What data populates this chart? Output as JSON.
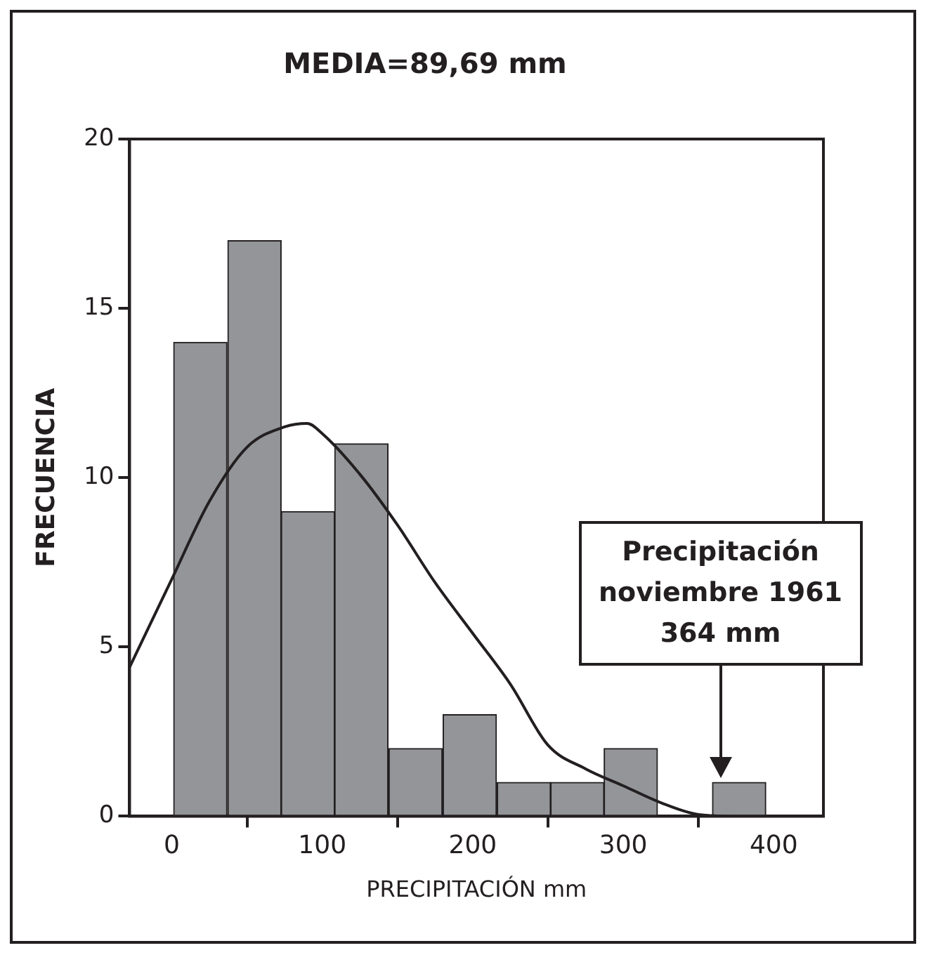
{
  "chart_data": {
    "type": "histogram",
    "title": "MEDIA=89,69 mm",
    "xlabel": "PRECIPITACIÓN mm",
    "ylabel": "FRECUENCIA",
    "bins": [
      1,
      37,
      73,
      108,
      144,
      180,
      216,
      252,
      287,
      323,
      359,
      395
    ],
    "values": [
      14,
      17,
      9,
      11,
      2,
      3,
      1,
      1,
      2,
      0,
      1
    ],
    "color": "#939598",
    "series": [
      {
        "type": "line",
        "color": "#231f20",
        "x": [
          -28,
          0,
          25,
          50,
          75,
          90,
          100,
          125,
          150,
          175,
          200,
          225,
          250,
          275,
          300,
          325,
          350,
          375,
          433
        ],
        "values": [
          4.4,
          7.0,
          9.3,
          10.9,
          11.5,
          11.6,
          11.3,
          10.1,
          8.6,
          6.9,
          5.4,
          3.9,
          2.1,
          1.4,
          0.9,
          0.4,
          0.05,
          0,
          0
        ]
      }
    ],
    "marker": "none",
    "xlim": [
      -28,
      433
    ],
    "xticks": [
      0,
      100,
      200,
      300,
      400
    ],
    "ylim": [
      0,
      20
    ],
    "yticks": [
      0,
      5,
      10,
      15,
      20
    ],
    "annotations": [
      "Precipitación\nnoviembre 1961\n364 mm"
    ]
  }
}
